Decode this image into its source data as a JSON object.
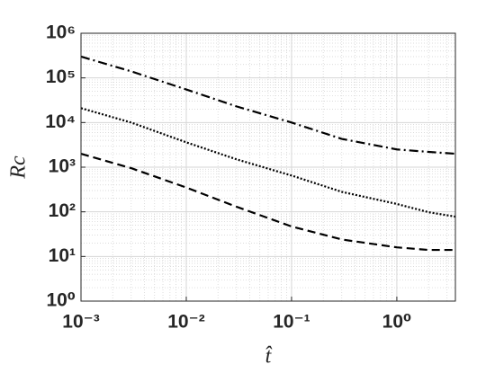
{
  "chart_data": {
    "type": "line",
    "xlabel": "t̂",
    "ylabel": "Rc",
    "x": [
      0.001,
      0.003,
      0.01,
      0.03,
      0.1,
      0.3,
      1,
      2,
      3.6
    ],
    "series": [
      {
        "color": "#000000",
        "linestyle": "-.",
        "values": [
          300000,
          140000,
          55000,
          23000,
          10000,
          4300,
          2500,
          2200,
          2000
        ]
      },
      {
        "color": "#000000",
        "linestyle": ":",
        "values": [
          21000,
          10000,
          3600,
          1500,
          650,
          280,
          150,
          98,
          78
        ]
      },
      {
        "color": "#000000",
        "linestyle": "--",
        "values": [
          2000,
          950,
          350,
          130,
          47,
          24,
          16,
          14,
          14
        ]
      }
    ],
    "xscale": "log",
    "yscale": "log",
    "xlim": [
      0.001,
      3.6
    ],
    "ylim": [
      1,
      1000000
    ],
    "xticks": [
      {
        "value": 0.001,
        "label": "10⁻³"
      },
      {
        "value": 0.01,
        "label": "10⁻²"
      },
      {
        "value": 0.1,
        "label": "10⁻¹"
      },
      {
        "value": 1,
        "label": "10⁰"
      }
    ],
    "yticks": [
      {
        "value": 1,
        "label": "10⁰"
      },
      {
        "value": 10,
        "label": "10¹"
      },
      {
        "value": 100,
        "label": "10²"
      },
      {
        "value": 1000,
        "label": "10³"
      },
      {
        "value": 10000,
        "label": "10⁴"
      },
      {
        "value": 100000,
        "label": "10⁵"
      },
      {
        "value": 1000000,
        "label": "10⁶"
      }
    ],
    "grid": true,
    "minor_grid": true
  }
}
